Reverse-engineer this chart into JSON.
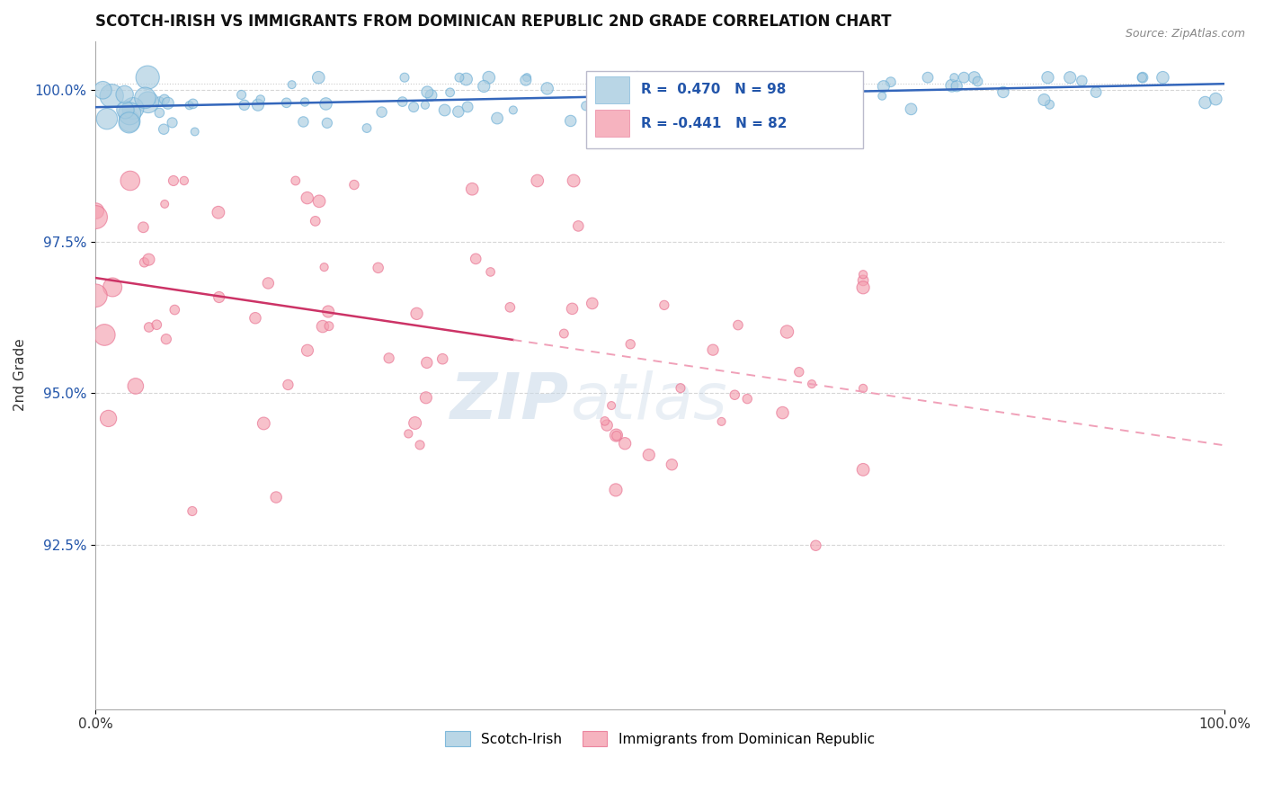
{
  "title": "SCOTCH-IRISH VS IMMIGRANTS FROM DOMINICAN REPUBLIC 2ND GRADE CORRELATION CHART",
  "source_text": "Source: ZipAtlas.com",
  "ylabel": "2nd Grade",
  "xlim": [
    0.0,
    1.0
  ],
  "ylim": [
    0.898,
    1.008
  ],
  "yticks": [
    0.925,
    0.95,
    0.975,
    1.0
  ],
  "ytick_labels": [
    "92.5%",
    "95.0%",
    "97.5%",
    "100.0%"
  ],
  "xticks": [
    0.0,
    1.0
  ],
  "xtick_labels": [
    "0.0%",
    "100.0%"
  ],
  "blue_R": 0.47,
  "blue_N": 98,
  "pink_R": -0.441,
  "pink_N": 82,
  "legend_blue_label": "Scotch-Irish",
  "legend_pink_label": "Immigrants from Dominican Republic",
  "blue_color": "#a8cce0",
  "blue_edge_color": "#6baed6",
  "pink_color": "#f4a0b0",
  "pink_edge_color": "#e87090",
  "blue_line_color": "#3366bb",
  "pink_line_color": "#cc3366",
  "pink_dash_color": "#f0a0b8",
  "watermark_zip": "ZIP",
  "watermark_atlas": "atlas",
  "background_color": "#ffffff",
  "seed": 77
}
